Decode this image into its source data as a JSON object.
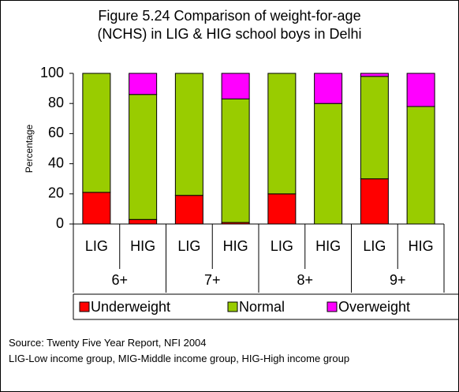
{
  "chart_data": {
    "type": "stacked-bar",
    "title": [
      "Figure 5.24 Comparison of weight-for-age",
      "(NCHS) in LIG & HIG school boys in Delhi"
    ],
    "y_label": "Percentage",
    "categories": [
      "LIG",
      "HIG",
      "LIG",
      "HIG",
      "LIG",
      "HIG",
      "LIG",
      "HIG"
    ],
    "groups": [
      "6+",
      "7+",
      "8+",
      "9+"
    ],
    "series": [
      {
        "name": "Underweight",
        "color": "#ff0000",
        "values": [
          21,
          3,
          19,
          1,
          20,
          0,
          30,
          0
        ]
      },
      {
        "name": "Normal",
        "color": "#99cc00",
        "values": [
          79,
          83,
          81,
          82,
          80,
          80,
          68,
          78
        ]
      },
      {
        "name": "Overweight",
        "color": "#ff00ff",
        "values": [
          0,
          14,
          0,
          17,
          0,
          20,
          2,
          22
        ]
      }
    ],
    "ylim": [
      0,
      100
    ],
    "yticks": [
      0,
      20,
      40,
      60,
      80,
      100
    ],
    "source": "Source: Twenty Five Year Report, NFI 2004",
    "note": "LIG-Low income group, MIG-Middle income group, HIG-High income group"
  }
}
